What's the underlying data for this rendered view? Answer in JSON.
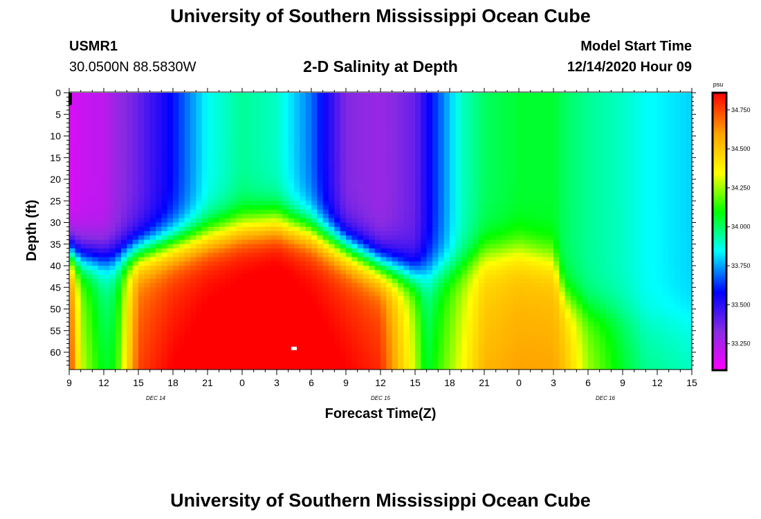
{
  "header": {
    "title": "University of Southern Mississippi Ocean Cube",
    "station_id": "USMR1",
    "coords": "30.0500N 88.5830W",
    "subtitle": "2-D Salinity at Depth",
    "model_label": "Model Start Time",
    "model_time": "12/14/2020 Hour 09"
  },
  "footer": {
    "title": "University of Southern Mississippi Ocean Cube"
  },
  "chart_data": {
    "type": "heatmap",
    "title": "2-D Salinity at Depth",
    "xlabel": "Forecast Time(Z)",
    "ylabel": "Depth (ft)",
    "x_start_hour": 9,
    "x_end_hour": 63,
    "x_ticks": [
      "9",
      "12",
      "15",
      "18",
      "21",
      "0",
      "3",
      "6",
      "9",
      "12",
      "15",
      "18",
      "21",
      "0",
      "3",
      "6",
      "9",
      "12",
      "15"
    ],
    "date_labels": [
      {
        "label": "DEC 14",
        "hour": 16.5
      },
      {
        "label": "DEC 15",
        "hour": 40.5
      },
      {
        "label": "DEC 16",
        "hour": 64.5
      }
    ],
    "y_ticks": [
      0,
      5,
      10,
      15,
      20,
      25,
      30,
      35,
      40,
      45,
      50,
      55,
      60
    ],
    "ylim": [
      0,
      64
    ],
    "colorbar": {
      "unit": "psu",
      "min": 33.08,
      "max": 34.86,
      "labels": [
        "34.750",
        "34.500",
        "34.250",
        "34.000",
        "33.750",
        "33.500",
        "33.250"
      ],
      "values": [
        34.75,
        34.5,
        34.25,
        34.0,
        33.75,
        33.5,
        33.25
      ],
      "colors": [
        "#ff00ff",
        "#8a2be2",
        "#0000ff",
        "#00ffff",
        "#00ff00",
        "#ffff00",
        "#ffa500",
        "#ff0000"
      ]
    },
    "profile_points": {
      "time_hours": [
        9,
        10,
        12,
        13,
        15,
        18,
        21,
        24,
        27,
        30,
        33,
        36,
        39,
        40,
        43,
        45,
        48,
        51,
        52,
        54,
        57,
        59,
        63
      ],
      "lower_surface": [
        34.7,
        34.2,
        33.95,
        34.0,
        34.65,
        34.75,
        34.8,
        34.82,
        34.84,
        34.8,
        34.75,
        34.7,
        34.2,
        33.95,
        34.25,
        34.45,
        34.5,
        34.5,
        34.45,
        34.2,
        34.0,
        33.9,
        33.85
      ],
      "interface_depth": [
        37,
        38,
        38,
        38,
        37,
        35,
        33,
        31,
        30,
        32,
        36,
        40,
        42,
        41,
        40,
        37,
        36,
        38,
        47,
        50,
        50,
        50,
        50
      ],
      "upper_salinity": [
        33.15,
        33.2,
        33.22,
        33.3,
        33.4,
        33.6,
        33.85,
        33.95,
        33.9,
        33.7,
        33.35,
        33.3,
        33.4,
        33.55,
        33.9,
        34.0,
        34.05,
        34.05,
        34.0,
        33.95,
        33.9,
        33.85,
        33.8
      ]
    }
  }
}
